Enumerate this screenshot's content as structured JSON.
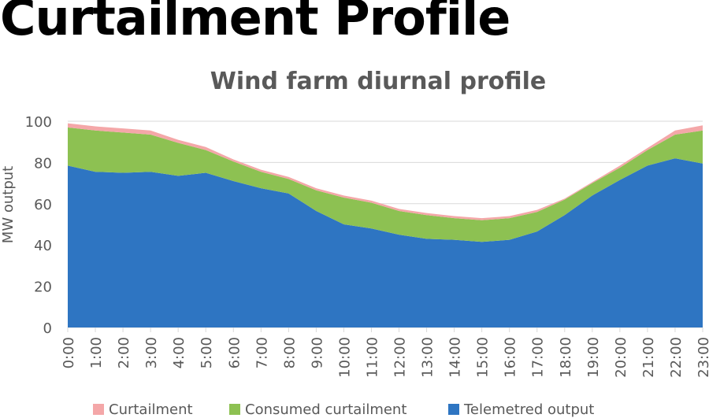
{
  "slide": {
    "title": "Curtailment Profile"
  },
  "colors": {
    "curtailment": "#F4A7A8",
    "consumed_curtailment": "#8DC152",
    "telemetred_output": "#2E75C2",
    "title_text": "#595959",
    "axis_text": "#595959",
    "grid": "#D9D9D9"
  },
  "chart_data": {
    "type": "area",
    "stacked": true,
    "title": "Wind farm diurnal profile",
    "xlabel": "",
    "ylabel": "MW output",
    "ylim": [
      0,
      100
    ],
    "yticks": [
      0,
      20,
      40,
      60,
      80,
      100
    ],
    "grid": true,
    "legend_position": "bottom",
    "categories": [
      "0:00",
      "1:00",
      "2:00",
      "3:00",
      "4:00",
      "5:00",
      "6:00",
      "7:00",
      "8:00",
      "9:00",
      "10:00",
      "11:00",
      "12:00",
      "13:00",
      "14:00",
      "15:00",
      "16:00",
      "17:00",
      "18:00",
      "19:00",
      "20:00",
      "21:00",
      "22:00",
      "23:00"
    ],
    "series": [
      {
        "name": "Telemetred output",
        "color_key": "telemetred_output",
        "values": [
          78.5,
          75.5,
          75,
          75.5,
          73.5,
          75,
          71,
          67.5,
          65,
          56.5,
          50,
          48,
          45,
          43,
          42.5,
          41.5,
          42.5,
          46.5,
          54.5,
          64,
          71.5,
          78.5,
          82,
          79.5
        ]
      },
      {
        "name": "Consumed curtailment",
        "color_key": "consumed_curtailment",
        "values": [
          18.5,
          20,
          19.5,
          18,
          16,
          11,
          9.5,
          8,
          7,
          10,
          13,
          12.5,
          11.5,
          11.5,
          10.5,
          10.5,
          10.5,
          9.5,
          7.5,
          6,
          6,
          7.5,
          11.5,
          16
        ]
      },
      {
        "name": "Curtailment",
        "color_key": "curtailment",
        "values": [
          2,
          2,
          2,
          2,
          1.5,
          1.5,
          1,
          1,
          1,
          1,
          1,
          1,
          1,
          1,
          1,
          1,
          1,
          1,
          0.5,
          0.5,
          1,
          1,
          2,
          2.5
        ]
      }
    ],
    "legend": [
      {
        "name": "Curtailment",
        "color_key": "curtailment"
      },
      {
        "name": "Consumed curtailment",
        "color_key": "consumed_curtailment"
      },
      {
        "name": "Telemetred output",
        "color_key": "telemetred_output"
      }
    ]
  }
}
